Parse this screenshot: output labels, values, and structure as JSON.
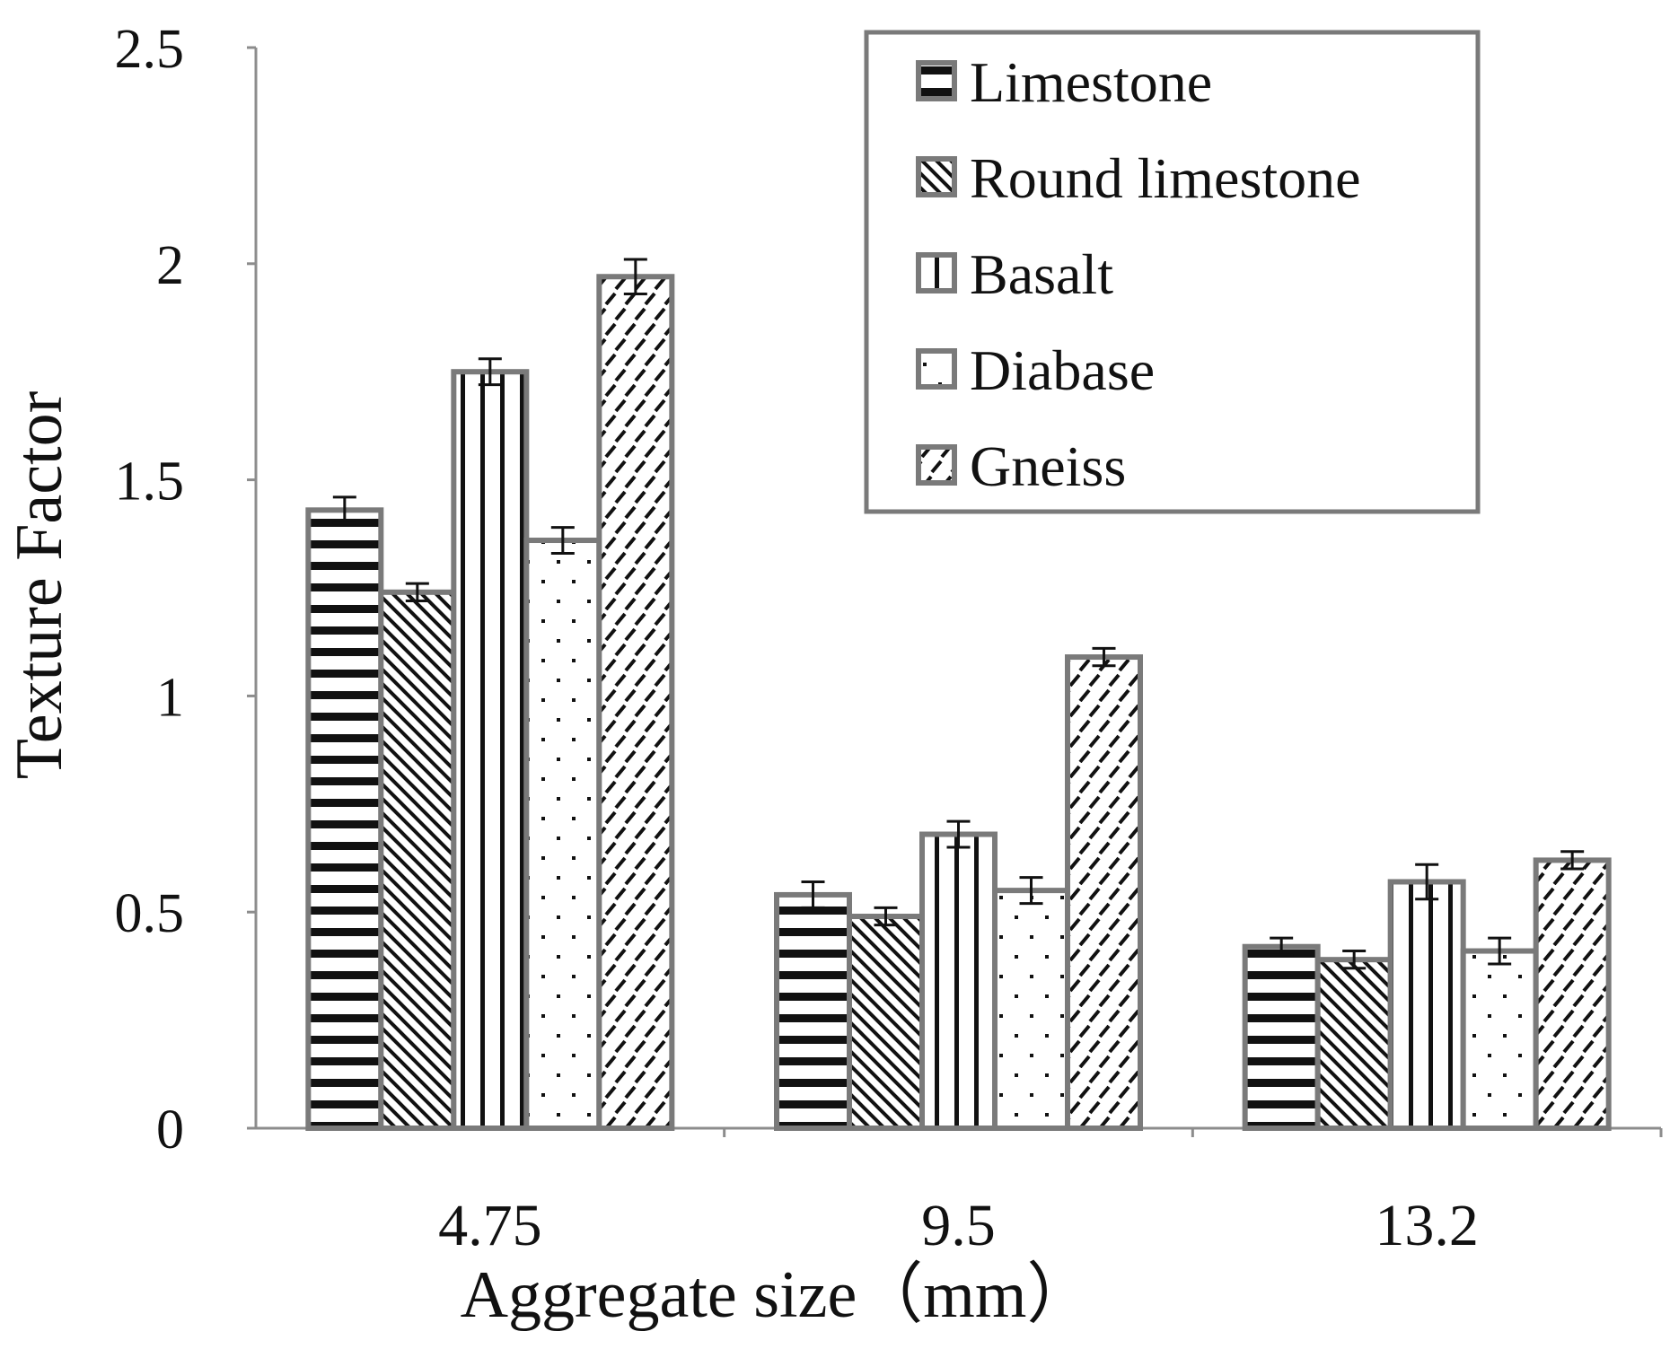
{
  "chart_data": {
    "type": "bar",
    "title": "",
    "xlabel": "Aggregate size（mm）",
    "ylabel": "Texture Factor",
    "categories": [
      "4.75",
      "9.5",
      "13.2"
    ],
    "ylim": [
      0,
      2.5
    ],
    "yticks": [
      0,
      0.5,
      1,
      1.5,
      2,
      2.5
    ],
    "ytick_labels": [
      "0",
      "0.5",
      "1",
      "1.5",
      "2",
      "2.5"
    ],
    "grid": false,
    "legend_position": "top-right",
    "series": [
      {
        "name": "Limestone",
        "pattern": "horizontal-lines",
        "values": [
          1.43,
          0.54,
          0.42
        ],
        "errors": [
          0.03,
          0.03,
          0.02
        ]
      },
      {
        "name": "Round limestone",
        "pattern": "diagonal-lines",
        "values": [
          1.24,
          0.49,
          0.39
        ],
        "errors": [
          0.02,
          0.02,
          0.02
        ]
      },
      {
        "name": "Basalt",
        "pattern": "vertical-lines",
        "values": [
          1.75,
          0.68,
          0.57
        ],
        "errors": [
          0.03,
          0.03,
          0.04
        ]
      },
      {
        "name": "Diabase",
        "pattern": "dots",
        "values": [
          1.36,
          0.55,
          0.41
        ],
        "errors": [
          0.03,
          0.03,
          0.03
        ]
      },
      {
        "name": "Gneiss",
        "pattern": "dashed-diagonals",
        "values": [
          1.97,
          1.09,
          0.62
        ],
        "errors": [
          0.04,
          0.02,
          0.02
        ]
      }
    ]
  },
  "colors": {
    "bar_border": "#7a7a7a",
    "axis": "#8c8c8c",
    "pattern": "#111111",
    "background": "#ffffff"
  }
}
